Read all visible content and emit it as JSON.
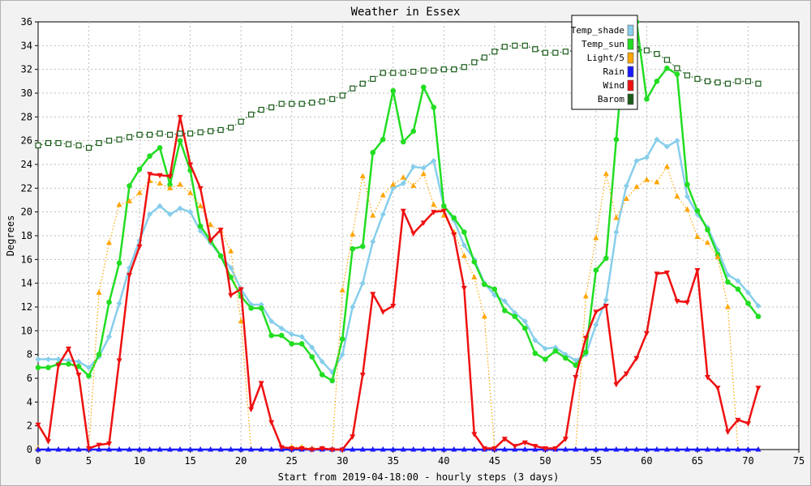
{
  "chart_data": {
    "type": "line",
    "title": "Weather in Essex",
    "xlabel": "Start from 2019-04-18:00 - hourly steps (3 days)",
    "ylabel": "Degrees",
    "xlim": [
      0,
      75
    ],
    "ylim": [
      0,
      36
    ],
    "x_ticks": [
      0,
      5,
      10,
      15,
      20,
      25,
      30,
      35,
      40,
      45,
      50,
      55,
      60,
      65,
      70,
      75
    ],
    "y_ticks": [
      0,
      2,
      4,
      6,
      8,
      10,
      12,
      14,
      16,
      18,
      20,
      22,
      24,
      26,
      28,
      30,
      32,
      34,
      36
    ],
    "grid": true,
    "legend_position": "top-right",
    "series": [
      {
        "name": "Temp_shade",
        "color": "#87ceeb",
        "values": [
          7.6,
          7.6,
          7.6,
          7.5,
          7.4,
          6.9,
          7.8,
          9.5,
          12.3,
          15.3,
          17.6,
          19.8,
          20.5,
          19.8,
          20.3,
          20.0,
          18.4,
          17.4,
          16.3,
          15.3,
          13.5,
          12.2,
          12.2,
          10.8,
          10.2,
          9.7,
          9.5,
          8.6,
          7.4,
          6.5,
          8.0,
          12.0,
          14.0,
          17.5,
          19.8,
          22.0,
          22.4,
          23.8,
          23.7,
          24.3,
          20.5,
          19.3,
          17.2,
          16.0,
          14.0,
          13.0,
          12.5,
          11.5,
          10.8,
          9.2,
          8.5,
          8.6,
          8.0,
          7.5,
          8.0,
          10.5,
          12.6,
          18.3,
          22.2,
          24.3,
          24.6,
          26.1,
          25.5,
          26.0,
          21.3,
          19.8,
          18.7,
          16.8,
          14.7,
          14.2,
          13.2,
          12.1
        ]
      },
      {
        "name": "Temp_sun",
        "color": "#22dd22",
        "values": [
          6.9,
          6.9,
          7.2,
          7.2,
          7.0,
          6.2,
          8.0,
          12.4,
          15.7,
          22.2,
          23.6,
          24.7,
          25.4,
          22.3,
          26.0,
          23.5,
          18.8,
          17.6,
          16.3,
          14.5,
          12.9,
          11.9,
          11.9,
          9.6,
          9.6,
          8.9,
          8.9,
          7.8,
          6.3,
          5.8,
          9.3,
          16.9,
          17.1,
          25.0,
          26.1,
          30.2,
          25.9,
          26.8,
          30.5,
          28.8,
          20.5,
          19.5,
          18.3,
          15.8,
          13.9,
          13.5,
          11.7,
          11.2,
          10.2,
          8.1,
          7.6,
          8.3,
          7.7,
          7.1,
          8.2,
          15.1,
          16.1,
          26.1,
          36.0,
          36.0,
          29.5,
          31.0,
          32.1,
          31.6,
          22.3,
          20.1,
          18.5,
          16.4,
          14.1,
          13.5,
          12.3,
          11.2
        ]
      },
      {
        "name": "Light/5",
        "color": "#ffa500",
        "values": [
          0.1,
          0,
          0,
          0,
          0,
          0,
          13.2,
          17.4,
          20.6,
          20.9,
          21.6,
          22.6,
          22.4,
          22.0,
          22.3,
          21.6,
          20.5,
          18.9,
          18.4,
          16.7,
          10.8,
          0,
          0,
          0,
          0,
          0.2,
          0.2,
          0.1,
          0.1,
          0,
          13.4,
          18.1,
          23.0,
          19.7,
          21.4,
          22.3,
          22.9,
          22.2,
          23.2,
          20.6,
          19.7,
          18.3,
          16.3,
          14.5,
          11.2,
          0,
          0,
          0,
          0,
          0,
          0,
          0,
          0,
          0,
          12.9,
          17.8,
          23.2,
          19.5,
          21.1,
          22.1,
          22.7,
          22.5,
          23.8,
          21.3,
          20.2,
          17.9,
          17.4,
          16.2,
          12.0,
          0,
          0,
          0
        ]
      },
      {
        "name": "Rain",
        "color": "#1a1aff",
        "values": [
          0,
          0,
          0,
          0,
          0,
          0,
          0,
          0,
          0,
          0,
          0,
          0,
          0,
          0,
          0,
          0,
          0,
          0,
          0,
          0,
          0,
          0,
          0,
          0,
          0,
          0,
          0,
          0,
          0,
          0,
          0,
          0,
          0,
          0,
          0,
          0,
          0,
          0,
          0,
          0,
          0,
          0,
          0,
          0,
          0,
          0,
          0,
          0,
          0,
          0,
          0,
          0,
          0,
          0,
          0,
          0,
          0,
          0,
          0,
          0,
          0,
          0,
          0,
          0,
          0,
          0,
          0,
          0,
          0,
          0,
          0,
          0
        ]
      },
      {
        "name": "Wind",
        "color": "#ee1111",
        "values": [
          2.1,
          0.7,
          7.1,
          8.5,
          6.3,
          0.1,
          0.4,
          0.5,
          7.5,
          14.7,
          17.1,
          23.2,
          23.1,
          23.0,
          28.0,
          24.0,
          22.0,
          17.6,
          18.5,
          13.0,
          13.5,
          3.4,
          5.6,
          2.3,
          0.2,
          0.1,
          0.1,
          0.0,
          0.1,
          0.0,
          0.0,
          1.1,
          6.3,
          13.1,
          11.6,
          12.1,
          20.1,
          18.2,
          19.1,
          20.0,
          20.1,
          18.1,
          13.6,
          1.3,
          0.1,
          0.1,
          0.9,
          0.3,
          0.6,
          0.3,
          0.1,
          0.1,
          0.9,
          6.1,
          9.4,
          11.6,
          12.1,
          5.5,
          6.4,
          7.7,
          9.8,
          14.8,
          14.9,
          12.5,
          12.4,
          15.1,
          6.1,
          5.2,
          1.5,
          2.5,
          2.2,
          5.2
        ]
      },
      {
        "name": "Barom",
        "color": "#1a5c1a",
        "values": [
          25.6,
          25.8,
          25.8,
          25.7,
          25.6,
          25.4,
          25.8,
          26.0,
          26.1,
          26.3,
          26.5,
          26.5,
          26.6,
          26.5,
          26.6,
          26.6,
          26.7,
          26.8,
          26.9,
          27.1,
          27.6,
          28.2,
          28.6,
          28.8,
          29.1,
          29.1,
          29.1,
          29.2,
          29.3,
          29.5,
          29.8,
          30.4,
          30.8,
          31.2,
          31.7,
          31.7,
          31.7,
          31.8,
          31.9,
          31.9,
          32.0,
          32.0,
          32.2,
          32.6,
          33.0,
          33.5,
          33.9,
          34.0,
          34.0,
          33.7,
          33.4,
          33.4,
          33.5,
          33.6,
          33.5,
          33.5,
          33.4,
          33.5,
          33.6,
          33.7,
          33.6,
          33.3,
          32.8,
          32.1,
          31.5,
          31.2,
          31.0,
          30.9,
          30.8,
          31.0,
          31.0,
          30.8
        ]
      }
    ]
  }
}
